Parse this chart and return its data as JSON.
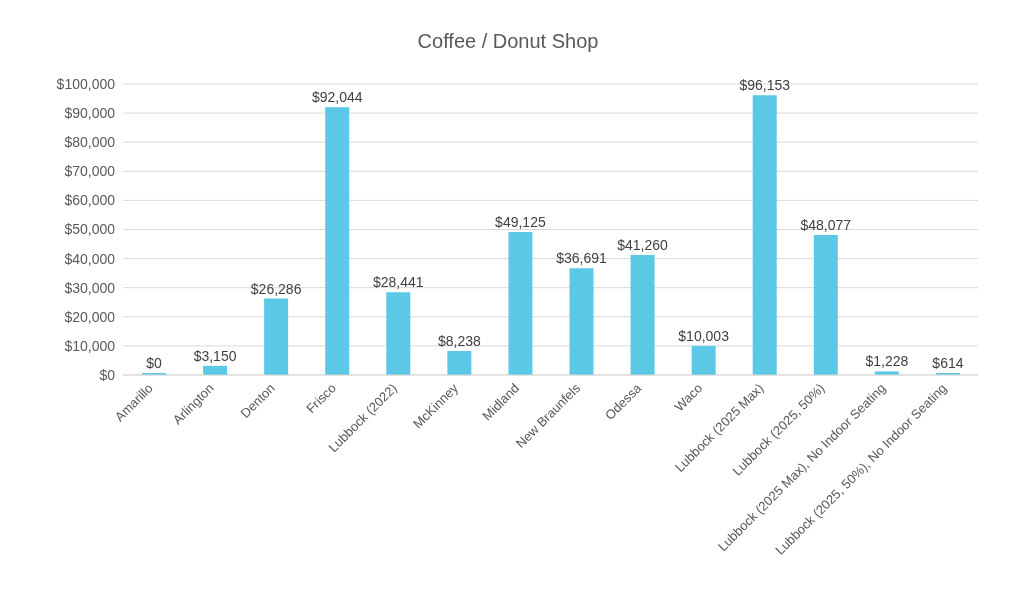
{
  "chart_data": {
    "type": "bar",
    "title": "Coffee / Donut Shop",
    "categories": [
      "Amarillo",
      "Arlington",
      "Denton",
      "Frisco",
      "Lubbock (2022)",
      "McKinney",
      "Midland",
      "New Braunfels",
      "Odessa",
      "Waco",
      "Lubbock (2025 Max)",
      "Lubbock (2025, 50%)",
      "Lubbock (2025 Max), No Indoor Seating",
      "Lubbock (2025, 50%), No Indoor Seating"
    ],
    "values": [
      0,
      3150,
      26286,
      92044,
      28441,
      8238,
      49125,
      36691,
      41260,
      10003,
      96153,
      48077,
      1228,
      614
    ],
    "value_labels": [
      "$0",
      "$3,150",
      "$26,286",
      "$92,044",
      "$28,441",
      "$8,238",
      "$49,125",
      "$36,691",
      "$41,260",
      "$10,003",
      "$96,153",
      "$48,077",
      "$1,228",
      "$614"
    ],
    "color": "#5bc8e6",
    "ylim": [
      0,
      100000
    ],
    "yticks": [
      {
        "value": 0,
        "label": "$0"
      },
      {
        "value": 10000,
        "label": "$10,000"
      },
      {
        "value": 20000,
        "label": "$20,000"
      },
      {
        "value": 30000,
        "label": "$30,000"
      },
      {
        "value": 40000,
        "label": "$40,000"
      },
      {
        "value": 50000,
        "label": "$50,000"
      },
      {
        "value": 60000,
        "label": "$60,000"
      },
      {
        "value": 70000,
        "label": "$70,000"
      },
      {
        "value": 80000,
        "label": "$80,000"
      },
      {
        "value": 90000,
        "label": "$90,000"
      },
      {
        "value": 100000,
        "label": "$100,000"
      }
    ],
    "grid": "y"
  }
}
